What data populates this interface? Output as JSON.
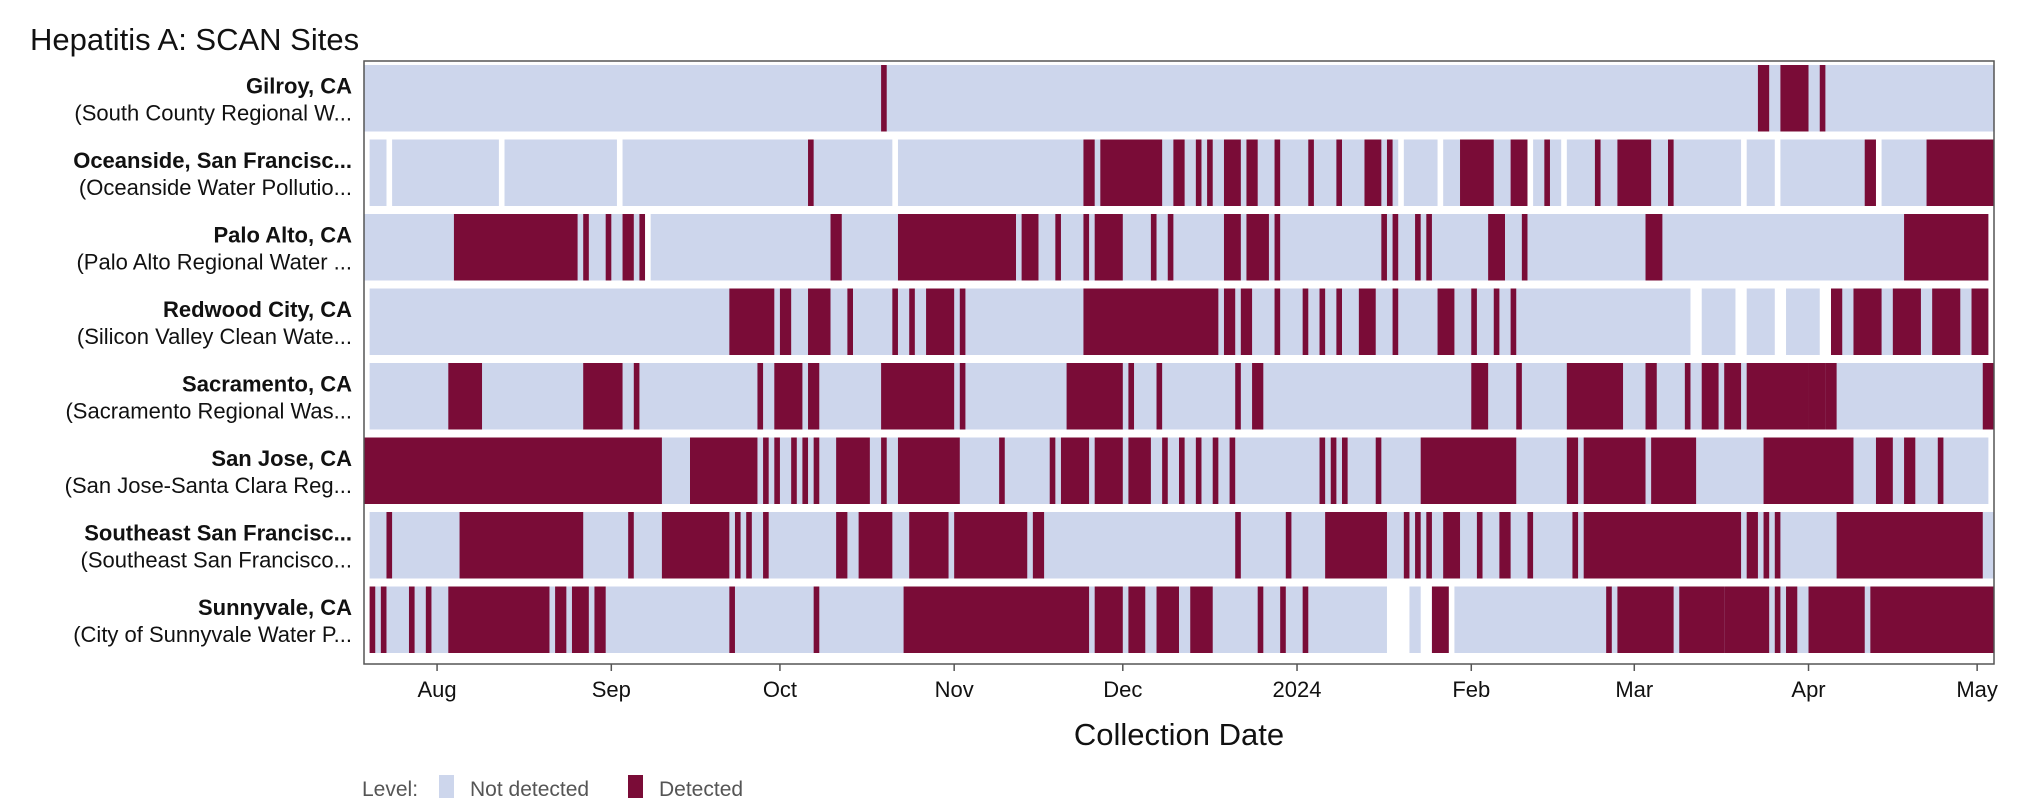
{
  "chart_data": {
    "type": "heatmap",
    "title": "Hepatitis A: SCAN Sites",
    "xlabel": "Collection Date",
    "ylabel": "",
    "x_range": [
      "2023-07-19",
      "2024-05-04"
    ],
    "x_ticks": [
      {
        "date": "2023-08-01",
        "label": "Aug"
      },
      {
        "date": "2023-09-01",
        "label": "Sep"
      },
      {
        "date": "2023-10-01",
        "label": "Oct"
      },
      {
        "date": "2023-11-01",
        "label": "Nov"
      },
      {
        "date": "2023-12-01",
        "label": "Dec"
      },
      {
        "date": "2024-01-01",
        "label": "2024"
      },
      {
        "date": "2024-02-01",
        "label": "Feb"
      },
      {
        "date": "2024-03-01",
        "label": "Mar"
      },
      {
        "date": "2024-04-01",
        "label": "Apr"
      },
      {
        "date": "2024-05-01",
        "label": "May"
      }
    ],
    "legend": {
      "title": "Level:",
      "items": [
        {
          "label": "Not detected",
          "color": "#cdd6ec"
        },
        {
          "label": "Detected",
          "color": "#7a0c37"
        }
      ]
    },
    "colors": {
      "not_detected": "#cdd6ec",
      "detected": "#7a0c37",
      "frame": "#555555"
    },
    "series": [
      {
        "name": "Gilroy, CA",
        "subtitle": "(South County Regional W...",
        "sampled": [
          [
            "2023-07-19",
            "2024-05-04"
          ]
        ],
        "detected": [
          [
            "2023-10-19",
            "2023-10-20"
          ],
          [
            "2024-03-23",
            "2024-03-25"
          ],
          [
            "2024-03-27",
            "2024-04-01"
          ],
          [
            "2024-04-03",
            "2024-04-04"
          ]
        ]
      },
      {
        "name": "Oceanside, San Francisc...",
        "subtitle": "(Oceanside Water Pollutio...",
        "sampled": [
          [
            "2023-07-20",
            "2023-07-23"
          ],
          [
            "2023-07-24",
            "2023-08-12"
          ],
          [
            "2023-08-13",
            "2023-09-02"
          ],
          [
            "2023-09-03",
            "2023-10-21"
          ],
          [
            "2023-10-22",
            "2024-01-19"
          ],
          [
            "2024-01-20",
            "2024-01-26"
          ],
          [
            "2024-01-27",
            "2024-02-11"
          ],
          [
            "2024-02-12",
            "2024-02-17"
          ],
          [
            "2024-02-18",
            "2024-03-20"
          ],
          [
            "2024-03-21",
            "2024-03-26"
          ],
          [
            "2024-03-27",
            "2024-04-13"
          ],
          [
            "2024-04-14",
            "2024-05-04"
          ]
        ],
        "detected": [
          [
            "2023-10-06",
            "2023-10-07"
          ],
          [
            "2023-11-24",
            "2023-11-26"
          ],
          [
            "2023-11-27",
            "2023-12-08"
          ],
          [
            "2023-12-10",
            "2023-12-12"
          ],
          [
            "2023-12-14",
            "2023-12-15"
          ],
          [
            "2023-12-16",
            "2023-12-17"
          ],
          [
            "2023-12-19",
            "2023-12-22"
          ],
          [
            "2023-12-23",
            "2023-12-25"
          ],
          [
            "2023-12-28",
            "2023-12-29"
          ],
          [
            "2024-01-03",
            "2024-01-04"
          ],
          [
            "2024-01-08",
            "2024-01-09"
          ],
          [
            "2024-01-13",
            "2024-01-16"
          ],
          [
            "2024-01-17",
            "2024-01-18"
          ],
          [
            "2024-01-30",
            "2024-02-05"
          ],
          [
            "2024-02-08",
            "2024-02-11"
          ],
          [
            "2024-02-14",
            "2024-02-15"
          ],
          [
            "2024-02-23",
            "2024-02-24"
          ],
          [
            "2024-02-27",
            "2024-03-04"
          ],
          [
            "2024-03-07",
            "2024-03-08"
          ],
          [
            "2024-04-11",
            "2024-04-13"
          ],
          [
            "2024-04-22",
            "2024-05-04"
          ]
        ]
      },
      {
        "name": "Palo Alto, CA",
        "subtitle": "(Palo Alto Regional Water ...",
        "sampled": [
          [
            "2023-07-19",
            "2023-09-07"
          ],
          [
            "2023-09-08",
            "2024-05-03"
          ]
        ],
        "detected": [
          [
            "2023-08-04",
            "2023-08-26"
          ],
          [
            "2023-08-27",
            "2023-08-28"
          ],
          [
            "2023-08-31",
            "2023-09-01"
          ],
          [
            "2023-09-03",
            "2023-09-05"
          ],
          [
            "2023-09-06",
            "2023-09-07"
          ],
          [
            "2023-10-10",
            "2023-10-12"
          ],
          [
            "2023-10-22",
            "2023-11-12"
          ],
          [
            "2023-11-13",
            "2023-11-16"
          ],
          [
            "2023-11-19",
            "2023-11-20"
          ],
          [
            "2023-11-24",
            "2023-11-25"
          ],
          [
            "2023-11-26",
            "2023-12-01"
          ],
          [
            "2023-12-06",
            "2023-12-07"
          ],
          [
            "2023-12-09",
            "2023-12-10"
          ],
          [
            "2023-12-19",
            "2023-12-22"
          ],
          [
            "2023-12-23",
            "2023-12-27"
          ],
          [
            "2023-12-28",
            "2023-12-29"
          ],
          [
            "2024-01-16",
            "2024-01-17"
          ],
          [
            "2024-01-18",
            "2024-01-19"
          ],
          [
            "2024-01-22",
            "2024-01-23"
          ],
          [
            "2024-01-24",
            "2024-01-25"
          ],
          [
            "2024-02-04",
            "2024-02-07"
          ],
          [
            "2024-02-10",
            "2024-02-11"
          ],
          [
            "2024-03-03",
            "2024-03-06"
          ],
          [
            "2024-04-18",
            "2024-05-03"
          ]
        ]
      },
      {
        "name": "Redwood City, CA",
        "subtitle": "(Silicon Valley Clean Wate...",
        "sampled": [
          [
            "2023-07-20",
            "2024-03-11"
          ],
          [
            "2024-03-13",
            "2024-03-19"
          ],
          [
            "2024-03-21",
            "2024-03-26"
          ],
          [
            "2024-03-28",
            "2024-04-03"
          ],
          [
            "2024-04-05",
            "2024-05-03"
          ]
        ],
        "detected": [
          [
            "2023-09-22",
            "2023-09-30"
          ],
          [
            "2023-10-01",
            "2023-10-03"
          ],
          [
            "2023-10-06",
            "2023-10-10"
          ],
          [
            "2023-10-13",
            "2023-10-14"
          ],
          [
            "2023-10-21",
            "2023-10-22"
          ],
          [
            "2023-10-24",
            "2023-10-25"
          ],
          [
            "2023-10-27",
            "2023-11-01"
          ],
          [
            "2023-11-02",
            "2023-11-03"
          ],
          [
            "2023-11-24",
            "2023-12-18"
          ],
          [
            "2023-12-19",
            "2023-12-21"
          ],
          [
            "2023-12-22",
            "2023-12-24"
          ],
          [
            "2023-12-28",
            "2023-12-29"
          ],
          [
            "2024-01-02",
            "2024-01-03"
          ],
          [
            "2024-01-05",
            "2024-01-06"
          ],
          [
            "2024-01-08",
            "2024-01-09"
          ],
          [
            "2024-01-12",
            "2024-01-15"
          ],
          [
            "2024-01-18",
            "2024-01-19"
          ],
          [
            "2024-01-26",
            "2024-01-29"
          ],
          [
            "2024-02-01",
            "2024-02-02"
          ],
          [
            "2024-02-05",
            "2024-02-06"
          ],
          [
            "2024-02-08",
            "2024-02-09"
          ],
          [
            "2024-04-05",
            "2024-04-07"
          ],
          [
            "2024-04-09",
            "2024-04-14"
          ],
          [
            "2024-04-16",
            "2024-04-21"
          ],
          [
            "2024-04-23",
            "2024-04-28"
          ],
          [
            "2024-04-30",
            "2024-05-03"
          ]
        ]
      },
      {
        "name": "Sacramento, CA",
        "subtitle": "(Sacramento Regional Was...",
        "sampled": [
          [
            "2023-07-20",
            "2024-05-04"
          ]
        ],
        "detected": [
          [
            "2023-08-03",
            "2023-08-09"
          ],
          [
            "2023-08-27",
            "2023-09-03"
          ],
          [
            "2023-09-05",
            "2023-09-06"
          ],
          [
            "2023-09-27",
            "2023-09-28"
          ],
          [
            "2023-09-30",
            "2023-10-05"
          ],
          [
            "2023-10-06",
            "2023-10-08"
          ],
          [
            "2023-10-19",
            "2023-11-01"
          ],
          [
            "2023-11-02",
            "2023-11-03"
          ],
          [
            "2023-11-21",
            "2023-12-01"
          ],
          [
            "2023-12-02",
            "2023-12-03"
          ],
          [
            "2023-12-07",
            "2023-12-08"
          ],
          [
            "2023-12-21",
            "2023-12-22"
          ],
          [
            "2023-12-24",
            "2023-12-26"
          ],
          [
            "2024-02-01",
            "2024-02-04"
          ],
          [
            "2024-02-09",
            "2024-02-10"
          ],
          [
            "2024-02-18",
            "2024-02-28"
          ],
          [
            "2024-03-03",
            "2024-03-05"
          ],
          [
            "2024-03-10",
            "2024-03-11"
          ],
          [
            "2024-03-13",
            "2024-03-16"
          ],
          [
            "2024-03-17",
            "2024-03-20"
          ],
          [
            "2024-03-21",
            "2024-04-01"
          ],
          [
            "2024-04-01",
            "2024-04-04"
          ],
          [
            "2024-04-04",
            "2024-04-06"
          ],
          [
            "2024-05-02",
            "2024-05-04"
          ]
        ]
      },
      {
        "name": "San Jose, CA",
        "subtitle": "(San Jose-Santa Clara Reg...",
        "sampled": [
          [
            "2023-07-19",
            "2024-05-03"
          ]
        ],
        "detected": [
          [
            "2023-07-19",
            "2023-09-10"
          ],
          [
            "2023-09-15",
            "2023-09-27"
          ],
          [
            "2023-09-28",
            "2023-09-29"
          ],
          [
            "2023-09-30",
            "2023-10-01"
          ],
          [
            "2023-10-03",
            "2023-10-04"
          ],
          [
            "2023-10-05",
            "2023-10-06"
          ],
          [
            "2023-10-07",
            "2023-10-08"
          ],
          [
            "2023-10-11",
            "2023-10-17"
          ],
          [
            "2023-10-19",
            "2023-10-20"
          ],
          [
            "2023-10-22",
            "2023-11-02"
          ],
          [
            "2023-11-09",
            "2023-11-10"
          ],
          [
            "2023-11-18",
            "2023-11-19"
          ],
          [
            "2023-11-20",
            "2023-11-25"
          ],
          [
            "2023-11-26",
            "2023-12-01"
          ],
          [
            "2023-12-02",
            "2023-12-06"
          ],
          [
            "2023-12-08",
            "2023-12-09"
          ],
          [
            "2023-12-11",
            "2023-12-12"
          ],
          [
            "2023-12-14",
            "2023-12-15"
          ],
          [
            "2023-12-17",
            "2023-12-18"
          ],
          [
            "2023-12-20",
            "2023-12-21"
          ],
          [
            "2024-01-05",
            "2024-01-06"
          ],
          [
            "2024-01-07",
            "2024-01-08"
          ],
          [
            "2024-01-09",
            "2024-01-10"
          ],
          [
            "2024-01-15",
            "2024-01-16"
          ],
          [
            "2024-01-23",
            "2024-02-09"
          ],
          [
            "2024-02-18",
            "2024-02-20"
          ],
          [
            "2024-02-21",
            "2024-03-03"
          ],
          [
            "2024-03-04",
            "2024-03-12"
          ],
          [
            "2024-03-24",
            "2024-04-05"
          ],
          [
            "2024-04-05",
            "2024-04-09"
          ],
          [
            "2024-04-13",
            "2024-04-16"
          ],
          [
            "2024-04-18",
            "2024-04-20"
          ],
          [
            "2024-04-24",
            "2024-04-25"
          ]
        ]
      },
      {
        "name": "Southeast San Francisc...",
        "subtitle": "(Southeast San Francisco...",
        "sampled": [
          [
            "2023-07-20",
            "2024-05-04"
          ]
        ],
        "detected": [
          [
            "2023-07-23",
            "2023-07-24"
          ],
          [
            "2023-08-05",
            "2023-08-27"
          ],
          [
            "2023-09-04",
            "2023-09-05"
          ],
          [
            "2023-09-10",
            "2023-09-22"
          ],
          [
            "2023-09-23",
            "2023-09-24"
          ],
          [
            "2023-09-25",
            "2023-09-26"
          ],
          [
            "2023-09-28",
            "2023-09-29"
          ],
          [
            "2023-10-11",
            "2023-10-13"
          ],
          [
            "2023-10-15",
            "2023-10-21"
          ],
          [
            "2023-10-24",
            "2023-10-31"
          ],
          [
            "2023-11-01",
            "2023-11-14"
          ],
          [
            "2023-11-15",
            "2023-11-17"
          ],
          [
            "2023-12-21",
            "2023-12-22"
          ],
          [
            "2023-12-30",
            "2023-12-31"
          ],
          [
            "2024-01-06",
            "2024-01-17"
          ],
          [
            "2024-01-20",
            "2024-01-21"
          ],
          [
            "2024-01-22",
            "2024-01-23"
          ],
          [
            "2024-01-24",
            "2024-01-25"
          ],
          [
            "2024-01-27",
            "2024-01-30"
          ],
          [
            "2024-02-02",
            "2024-02-03"
          ],
          [
            "2024-02-06",
            "2024-02-08"
          ],
          [
            "2024-02-11",
            "2024-02-12"
          ],
          [
            "2024-02-19",
            "2024-02-20"
          ],
          [
            "2024-02-21",
            "2024-03-20"
          ],
          [
            "2024-03-21",
            "2024-03-23"
          ],
          [
            "2024-03-24",
            "2024-03-25"
          ],
          [
            "2024-03-26",
            "2024-03-27"
          ],
          [
            "2024-04-06",
            "2024-05-02"
          ]
        ]
      },
      {
        "name": "Sunnyvale, CA",
        "subtitle": "(City of Sunnyvale Water P...",
        "sampled": [
          [
            "2023-07-20",
            "2024-01-17"
          ],
          [
            "2024-01-21",
            "2024-01-23"
          ],
          [
            "2024-01-25",
            "2024-01-28"
          ],
          [
            "2024-01-29",
            "2024-02-28"
          ],
          [
            "2024-03-02",
            "2024-05-04"
          ]
        ],
        "detected": [
          [
            "2023-07-20",
            "2023-07-21"
          ],
          [
            "2023-07-22",
            "2023-07-23"
          ],
          [
            "2023-07-27",
            "2023-07-28"
          ],
          [
            "2023-07-30",
            "2023-07-31"
          ],
          [
            "2023-08-03",
            "2023-08-21"
          ],
          [
            "2023-08-22",
            "2023-08-24"
          ],
          [
            "2023-08-25",
            "2023-08-28"
          ],
          [
            "2023-08-29",
            "2023-08-31"
          ],
          [
            "2023-09-22",
            "2023-09-23"
          ],
          [
            "2023-10-07",
            "2023-10-08"
          ],
          [
            "2023-10-23",
            "2023-11-25"
          ],
          [
            "2023-11-26",
            "2023-12-01"
          ],
          [
            "2023-12-02",
            "2023-12-05"
          ],
          [
            "2023-12-07",
            "2023-12-11"
          ],
          [
            "2023-12-13",
            "2023-12-17"
          ],
          [
            "2023-12-25",
            "2023-12-26"
          ],
          [
            "2023-12-29",
            "2023-12-30"
          ],
          [
            "2024-01-02",
            "2024-01-03"
          ],
          [
            "2024-01-25",
            "2024-01-28"
          ],
          [
            "2024-02-25",
            "2024-02-26"
          ],
          [
            "2024-02-27",
            "2024-03-08"
          ],
          [
            "2024-03-09",
            "2024-03-17"
          ],
          [
            "2024-03-17",
            "2024-03-25"
          ],
          [
            "2024-03-26",
            "2024-03-27"
          ],
          [
            "2024-03-28",
            "2024-03-30"
          ],
          [
            "2024-04-01",
            "2024-04-11"
          ],
          [
            "2024-04-12",
            "2024-05-04"
          ]
        ]
      }
    ]
  }
}
